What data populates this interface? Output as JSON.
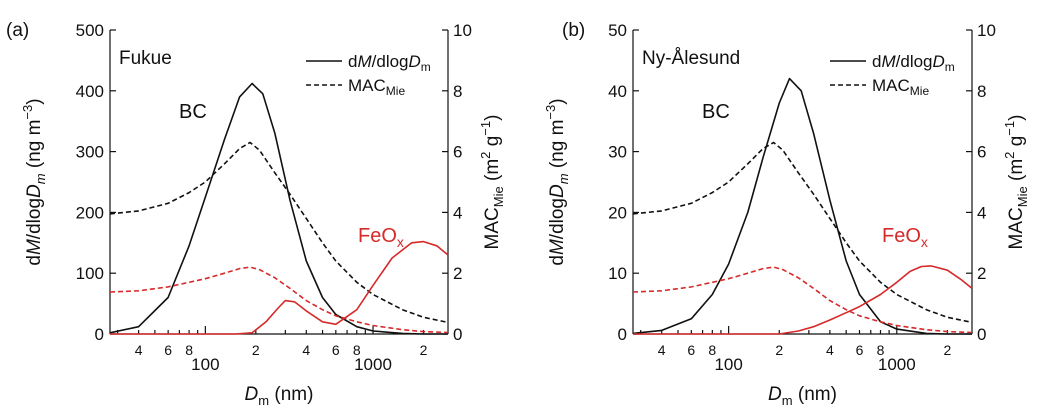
{
  "chart_data": [
    {
      "panel": "(a)",
      "site": "Fukue",
      "type": "line",
      "xlabel": {
        "main": "D",
        "sub": "m",
        "unit": " (nm)"
      },
      "ylabel_left": "dM/dlogD_m (ng m^-3)",
      "ylabel_right": "MAC_Mie (m^2 g^-1)",
      "xscale": "log",
      "xlim": [
        27,
        2800
      ],
      "ylim_left": [
        0,
        500
      ],
      "ylim_right": [
        0,
        10
      ],
      "y_ticks_left": [
        "0",
        "100",
        "200",
        "300",
        "400",
        "500"
      ],
      "y_ticks_right": [
        "0",
        "2",
        "4",
        "6",
        "8",
        "10"
      ],
      "x_major_ticks": [
        {
          "value": 100,
          "label": "100"
        },
        {
          "value": 1000,
          "label": "1000"
        }
      ],
      "x_minor_labels": [
        {
          "value": 40,
          "label": "4"
        },
        {
          "value": 60,
          "label": "6"
        },
        {
          "value": 80,
          "label": "8"
        },
        {
          "value": 200,
          "label": "2"
        },
        {
          "value": 400,
          "label": "4"
        },
        {
          "value": 600,
          "label": "6"
        },
        {
          "value": 800,
          "label": "8"
        },
        {
          "value": 2000,
          "label": "2"
        }
      ],
      "legend": {
        "position": "top-right",
        "items": [
          {
            "label": "dM/dlogD_m",
            "style": "solid"
          },
          {
            "label": "MAC_Mie",
            "style": "dashed"
          }
        ]
      },
      "annotations": [
        {
          "text": "BC",
          "color": "#111111"
        },
        {
          "text": "FeO_x",
          "color": "#d62a2a"
        }
      ],
      "series": [
        {
          "name": "BC dM/dlogDm",
          "axis": "left",
          "style": "solid",
          "color": "#111111",
          "x": [
            27,
            40,
            60,
            80,
            100,
            130,
            160,
            190,
            220,
            260,
            320,
            400,
            500,
            600,
            800,
            1000,
            1500,
            2000,
            2800
          ],
          "y": [
            2,
            12,
            60,
            145,
            225,
            320,
            390,
            412,
            395,
            330,
            220,
            120,
            60,
            32,
            12,
            5,
            1,
            0,
            0
          ]
        },
        {
          "name": "BC MAC_Mie",
          "axis": "right",
          "style": "dashed",
          "color": "#111111",
          "x": [
            27,
            40,
            60,
            80,
            100,
            130,
            160,
            185,
            210,
            260,
            320,
            400,
            500,
            600,
            800,
            1000,
            1500,
            2000,
            2800
          ],
          "y": [
            3.95,
            4.05,
            4.3,
            4.65,
            5.0,
            5.6,
            6.1,
            6.3,
            6.05,
            5.3,
            4.6,
            3.8,
            3.0,
            2.4,
            1.7,
            1.3,
            0.8,
            0.55,
            0.38
          ]
        },
        {
          "name": "FeOx dM/dlogDm",
          "axis": "left",
          "style": "solid",
          "color": "#d62a2a",
          "x": [
            27,
            100,
            150,
            190,
            230,
            270,
            300,
            340,
            400,
            500,
            600,
            800,
            1000,
            1300,
            1700,
            2000,
            2400,
            2800
          ],
          "y": [
            0,
            0,
            0,
            2,
            20,
            42,
            55,
            53,
            38,
            20,
            16,
            40,
            80,
            125,
            150,
            152,
            145,
            130
          ]
        },
        {
          "name": "FeOx MAC_Mie",
          "axis": "right",
          "style": "dashed",
          "color": "#d62a2a",
          "x": [
            27,
            40,
            60,
            80,
            100,
            130,
            160,
            185,
            210,
            260,
            320,
            400,
            500,
            600,
            800,
            1000,
            1500,
            2000,
            2800
          ],
          "y": [
            1.38,
            1.42,
            1.55,
            1.7,
            1.82,
            2.0,
            2.15,
            2.2,
            2.12,
            1.85,
            1.5,
            1.1,
            0.8,
            0.6,
            0.4,
            0.28,
            0.14,
            0.08,
            0.05
          ]
        }
      ]
    },
    {
      "panel": "(b)",
      "site": "Ny-Ålesund",
      "type": "line",
      "xlabel": {
        "main": "D",
        "sub": "m",
        "unit": " (nm)"
      },
      "ylabel_left": "dM/dlogD_m (ng m^-3)",
      "ylabel_right": "MAC_Mie (m^2 g^-1)",
      "xscale": "log",
      "xlim": [
        27,
        2800
      ],
      "ylim_left": [
        0,
        50
      ],
      "ylim_right": [
        0,
        10
      ],
      "y_ticks_left": [
        "0",
        "10",
        "20",
        "30",
        "40",
        "50"
      ],
      "y_ticks_right": [
        "0",
        "2",
        "4",
        "6",
        "8",
        "10"
      ],
      "x_major_ticks": [
        {
          "value": 100,
          "label": "100"
        },
        {
          "value": 1000,
          "label": "1000"
        }
      ],
      "x_minor_labels": [
        {
          "value": 40,
          "label": "4"
        },
        {
          "value": 60,
          "label": "6"
        },
        {
          "value": 80,
          "label": "8"
        },
        {
          "value": 200,
          "label": "2"
        },
        {
          "value": 400,
          "label": "4"
        },
        {
          "value": 600,
          "label": "6"
        },
        {
          "value": 800,
          "label": "8"
        },
        {
          "value": 2000,
          "label": "2"
        }
      ],
      "legend": {
        "position": "top-right",
        "items": [
          {
            "label": "dM/dlogD_m",
            "style": "solid"
          },
          {
            "label": "MAC_Mie",
            "style": "dashed"
          }
        ]
      },
      "annotations": [
        {
          "text": "BC",
          "color": "#111111"
        },
        {
          "text": "FeO_x",
          "color": "#d62a2a"
        }
      ],
      "series": [
        {
          "name": "BC dM/dlogDm",
          "axis": "left",
          "style": "solid",
          "color": "#111111",
          "x": [
            27,
            40,
            60,
            80,
            100,
            130,
            160,
            200,
            230,
            270,
            320,
            400,
            500,
            600,
            800,
            1000,
            1500,
            2000,
            2800
          ],
          "y": [
            0.1,
            0.6,
            2.5,
            6.5,
            11.5,
            20,
            29,
            38,
            42,
            40,
            33,
            22,
            12,
            6.5,
            2,
            0.8,
            0.1,
            0,
            0
          ]
        },
        {
          "name": "BC MAC_Mie",
          "axis": "right",
          "style": "dashed",
          "color": "#111111",
          "x": [
            27,
            40,
            60,
            80,
            100,
            130,
            160,
            185,
            210,
            260,
            320,
            400,
            500,
            600,
            800,
            1000,
            1500,
            2000,
            2800
          ],
          "y": [
            3.95,
            4.05,
            4.3,
            4.65,
            5.0,
            5.6,
            6.1,
            6.3,
            6.05,
            5.3,
            4.6,
            3.8,
            3.0,
            2.4,
            1.7,
            1.3,
            0.8,
            0.55,
            0.38
          ]
        },
        {
          "name": "FeOx dM/dlogDm",
          "axis": "left",
          "style": "solid",
          "color": "#d62a2a",
          "x": [
            27,
            100,
            150,
            200,
            260,
            320,
            400,
            500,
            600,
            800,
            1000,
            1200,
            1400,
            1600,
            2000,
            2400,
            2800
          ],
          "y": [
            0,
            0,
            0,
            0,
            0.5,
            1.2,
            2.3,
            3.5,
            4.5,
            6.5,
            8.5,
            10.3,
            11.1,
            11.2,
            10.5,
            9,
            7.5
          ]
        },
        {
          "name": "FeOx MAC_Mie",
          "axis": "right",
          "style": "dashed",
          "color": "#d62a2a",
          "x": [
            27,
            40,
            60,
            80,
            100,
            130,
            160,
            185,
            210,
            260,
            320,
            400,
            500,
            600,
            800,
            1000,
            1500,
            2000,
            2800
          ],
          "y": [
            1.38,
            1.42,
            1.55,
            1.7,
            1.82,
            2.0,
            2.15,
            2.2,
            2.12,
            1.85,
            1.5,
            1.1,
            0.8,
            0.6,
            0.4,
            0.28,
            0.14,
            0.08,
            0.05
          ]
        }
      ]
    }
  ]
}
